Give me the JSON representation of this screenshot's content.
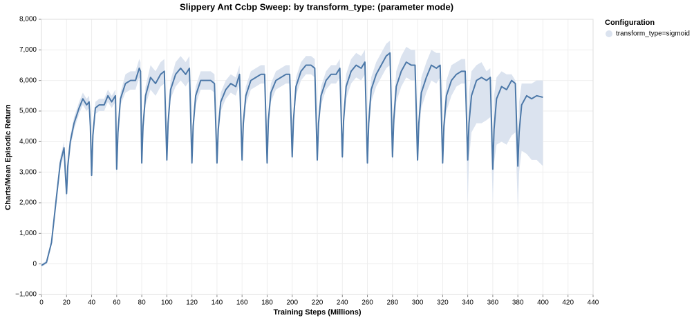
{
  "chart_data": {
    "type": "line",
    "title": "Slippery Ant Ccbp Sweep: by transform_type: (parameter mode)",
    "x_label": "Training Steps (Millions)",
    "y_label": "Charts/Mean Episodic Return",
    "legend_title": "Configuration",
    "legend": "top-right",
    "grid": true,
    "xlim": [
      0,
      440
    ],
    "xticks": [
      0,
      20,
      40,
      60,
      80,
      100,
      120,
      140,
      160,
      180,
      200,
      220,
      240,
      260,
      280,
      300,
      320,
      340,
      360,
      380,
      400,
      420,
      440
    ],
    "ylim": [
      -1000,
      8000
    ],
    "yticks": [
      {
        "value": -1000,
        "label": "−1,000"
      },
      0,
      {
        "value": 1000,
        "label": "1,000"
      },
      {
        "value": 2000,
        "label": "2,000"
      },
      {
        "value": 3000,
        "label": "3,000"
      },
      {
        "value": 4000,
        "label": "4,000"
      },
      {
        "value": 5000,
        "label": "5,000"
      },
      {
        "value": 6000,
        "label": "6,000"
      },
      {
        "value": 7000,
        "label": "7,000"
      },
      {
        "value": 8000,
        "label": "8,000"
      }
    ],
    "x": [
      0,
      4,
      8,
      12,
      15,
      18,
      19,
      20,
      21,
      23,
      26,
      30,
      33,
      36,
      38,
      39,
      40,
      41,
      43,
      46,
      50,
      53,
      56,
      59,
      60,
      61,
      63,
      67,
      71,
      75,
      78,
      79,
      80,
      81,
      83,
      87,
      91,
      95,
      98,
      100,
      101,
      103,
      107,
      111,
      115,
      118,
      120,
      121,
      123,
      127,
      131,
      135,
      138,
      140,
      141,
      143,
      147,
      151,
      155,
      158,
      160,
      161,
      163,
      167,
      171,
      175,
      178,
      180,
      181,
      183,
      187,
      191,
      195,
      198,
      200,
      201,
      203,
      207,
      211,
      215,
      218,
      220,
      221,
      223,
      227,
      231,
      235,
      238,
      240,
      241,
      243,
      247,
      251,
      255,
      258,
      260,
      261,
      263,
      267,
      271,
      275,
      278,
      280,
      281,
      283,
      287,
      291,
      295,
      298,
      300,
      301,
      303,
      307,
      311,
      315,
      318,
      320,
      321,
      323,
      327,
      331,
      335,
      338,
      340,
      341,
      343,
      347,
      351,
      355,
      358,
      360,
      361,
      363,
      367,
      371,
      375,
      378,
      380,
      381,
      383,
      387,
      391,
      395,
      400
    ],
    "series": [
      {
        "name": "transform_type=sigmoid",
        "color": "#4c78a8",
        "band_color": "#dbe3ef",
        "values": [
          -50,
          50,
          700,
          2200,
          3300,
          3800,
          3000,
          2300,
          3200,
          4000,
          4600,
          5100,
          5400,
          5200,
          5300,
          4500,
          2900,
          4200,
          5100,
          5200,
          5200,
          5500,
          5300,
          5500,
          3100,
          4300,
          5400,
          5900,
          6000,
          6000,
          6400,
          6300,
          3300,
          4500,
          5500,
          6100,
          5900,
          6200,
          6300,
          3400,
          4600,
          5700,
          6200,
          6400,
          6200,
          6400,
          3300,
          4500,
          5500,
          6000,
          6000,
          6000,
          5900,
          3300,
          4400,
          5300,
          5700,
          5900,
          5800,
          6200,
          3400,
          4600,
          5500,
          6000,
          6100,
          6200,
          6200,
          3300,
          4700,
          5600,
          6000,
          6100,
          6200,
          6200,
          3500,
          4700,
          5800,
          6300,
          6500,
          6500,
          6400,
          3400,
          4600,
          5500,
          6000,
          6200,
          6200,
          6400,
          3500,
          4700,
          5800,
          6300,
          6500,
          6400,
          6600,
          3300,
          4600,
          5700,
          6200,
          6500,
          6800,
          6900,
          3500,
          4700,
          5800,
          6300,
          6600,
          6500,
          6500,
          3400,
          4600,
          5600,
          6100,
          6500,
          6400,
          6500,
          3300,
          4500,
          5500,
          6000,
          6200,
          6300,
          6300,
          3400,
          4600,
          5500,
          6000,
          6100,
          6000,
          6100,
          3100,
          4400,
          5400,
          5800,
          5700,
          6000,
          5900,
          3200,
          4300,
          5200,
          5500,
          5400,
          5500,
          5450
        ],
        "lower": [
          -100,
          0,
          600,
          2000,
          3100,
          3600,
          2700,
          2000,
          2900,
          3800,
          4400,
          4900,
          5200,
          5000,
          5100,
          4200,
          2700,
          3900,
          4900,
          5000,
          5000,
          5300,
          5100,
          5300,
          2900,
          4000,
          5200,
          5600,
          5700,
          5700,
          6100,
          6000,
          3100,
          4200,
          5200,
          5700,
          5500,
          5800,
          5900,
          3200,
          4300,
          5400,
          5800,
          6000,
          5800,
          6000,
          3100,
          4200,
          5200,
          5700,
          5700,
          5700,
          5600,
          3100,
          4100,
          5000,
          5400,
          5600,
          5500,
          5900,
          3200,
          4300,
          5200,
          5700,
          5800,
          5900,
          5900,
          3100,
          4400,
          5300,
          5700,
          5800,
          5900,
          5900,
          3300,
          4400,
          5500,
          6000,
          6200,
          6200,
          6100,
          3200,
          4300,
          5200,
          5700,
          5900,
          5900,
          6100,
          3300,
          4400,
          5400,
          5900,
          6100,
          6000,
          6200,
          3100,
          4200,
          5300,
          5800,
          6100,
          6400,
          6500,
          3300,
          4300,
          5300,
          5800,
          6100,
          6000,
          6000,
          3200,
          4200,
          5100,
          5600,
          6000,
          5900,
          6100,
          3100,
          4100,
          5000,
          5500,
          5800,
          5900,
          5900,
          2000,
          3400,
          4300,
          4600,
          4600,
          4700,
          4800,
          2000,
          3300,
          3900,
          4000,
          3900,
          4200,
          4300,
          1800,
          3000,
          3700,
          3600,
          3400,
          3400,
          3200
        ],
        "upper": [
          0,
          100,
          800,
          2400,
          3500,
          4000,
          3300,
          2600,
          3500,
          4200,
          4800,
          5300,
          5600,
          5400,
          5500,
          4800,
          3100,
          4500,
          5300,
          5400,
          5400,
          5700,
          5500,
          5700,
          3300,
          4600,
          5600,
          6200,
          6300,
          6300,
          6700,
          6600,
          3500,
          4800,
          5800,
          6500,
          6300,
          6600,
          6700,
          3600,
          4900,
          6000,
          6600,
          6800,
          6600,
          6800,
          3500,
          4800,
          5800,
          6300,
          6300,
          6300,
          6200,
          3500,
          4700,
          5600,
          6000,
          6200,
          6100,
          6500,
          3600,
          4900,
          5800,
          6300,
          6400,
          6500,
          6500,
          3500,
          5000,
          5900,
          6300,
          6400,
          6500,
          6500,
          3700,
          5000,
          6100,
          6600,
          6800,
          6800,
          6700,
          3600,
          4900,
          5800,
          6300,
          6500,
          6500,
          6700,
          3700,
          5000,
          6200,
          6700,
          6900,
          6800,
          7000,
          3500,
          5000,
          6100,
          6600,
          6900,
          7200,
          7300,
          3700,
          5100,
          6300,
          6800,
          7100,
          7000,
          7000,
          3600,
          5000,
          6100,
          6600,
          7000,
          6900,
          6900,
          3500,
          4900,
          6000,
          6500,
          6600,
          6700,
          6700,
          3800,
          5600,
          6300,
          6500,
          6600,
          6300,
          6400,
          3600,
          5500,
          6100,
          6300,
          6200,
          6200,
          6000,
          3600,
          5300,
          5900,
          5900,
          5900,
          6000,
          6000
        ]
      }
    ]
  }
}
